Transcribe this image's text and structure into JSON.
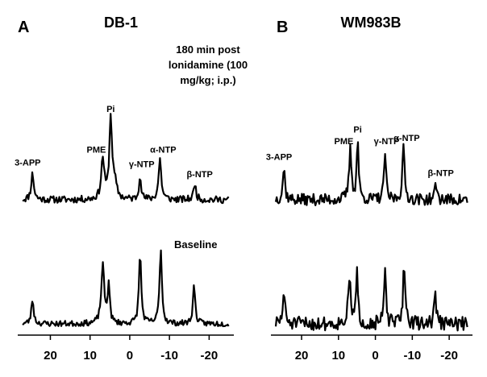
{
  "chart_data": {
    "type": "line",
    "xlabel": "",
    "ylabel": "",
    "x_unit": "ppm",
    "xlim": [
      27,
      -25
    ],
    "x_ticks": [
      20,
      10,
      0,
      -10,
      -20
    ],
    "panels": [
      {
        "letter": "A",
        "title": "DB-1",
        "condition_note": "180 min post lonidamine (100 mg/kg; i.p.)",
        "condition_lines": [
          "180 min post",
          "lonidamine (100",
          "mg/kg; i.p.)"
        ],
        "baseline_label": "Baseline",
        "series": [
          {
            "name": "180 min post lonidamine",
            "noise": 0.06,
            "seed": 11,
            "peaks": [
              {
                "label": "3-APP",
                "ppm": 24.5,
                "height": 0.45,
                "width": 0.4
              },
              {
                "label": "PME",
                "ppm": 6.8,
                "height": 0.7,
                "width": 0.45
              },
              {
                "label": "Pi",
                "ppm": 4.8,
                "height": 1.4,
                "width": 0.4
              },
              {
                "label": "",
                "ppm": 3.8,
                "height": 0.25,
                "width": 0.6
              },
              {
                "label": "γ-NTP",
                "ppm": -2.6,
                "height": 0.45,
                "width": 0.3
              },
              {
                "label": "α-NTP",
                "ppm": -7.6,
                "height": 0.7,
                "width": 0.4
              },
              {
                "label": "β-NTP",
                "ppm": -16.4,
                "height": 0.28,
                "width": 0.35
              }
            ]
          },
          {
            "name": "Baseline",
            "noise": 0.05,
            "seed": 23,
            "peaks": [
              {
                "ppm": 24.5,
                "height": 0.42,
                "width": 0.35
              },
              {
                "ppm": 6.8,
                "height": 1.0,
                "width": 0.45
              },
              {
                "ppm": 5.3,
                "height": 0.7,
                "width": 0.3
              },
              {
                "ppm": -2.6,
                "height": 1.2,
                "width": 0.35
              },
              {
                "ppm": -7.8,
                "height": 1.3,
                "width": 0.35
              },
              {
                "ppm": -16.2,
                "height": 0.65,
                "width": 0.35
              }
            ]
          }
        ]
      },
      {
        "letter": "B",
        "title": "WM983B",
        "baseline_label": "",
        "series": [
          {
            "name": "180 min post lonidamine",
            "noise": 0.1,
            "seed": 37,
            "peaks": [
              {
                "label": "3-APP",
                "ppm": 24.8,
                "height": 0.55,
                "width": 0.35
              },
              {
                "label": "PME",
                "ppm": 6.8,
                "height": 0.85,
                "width": 0.4
              },
              {
                "label": "Pi",
                "ppm": 4.8,
                "height": 1.05,
                "width": 0.3
              },
              {
                "label": "γ-NTP",
                "ppm": -2.6,
                "height": 0.85,
                "width": 0.3
              },
              {
                "label": "α-NTP",
                "ppm": -7.6,
                "height": 0.9,
                "width": 0.35
              },
              {
                "label": "β-NTP",
                "ppm": -16.4,
                "height": 0.3,
                "width": 0.3
              }
            ]
          },
          {
            "name": "Baseline",
            "noise": 0.12,
            "seed": 51,
            "peaks": [
              {
                "ppm": 24.8,
                "height": 0.55,
                "width": 0.35
              },
              {
                "ppm": 7.0,
                "height": 0.7,
                "width": 0.45
              },
              {
                "ppm": 5.0,
                "height": 0.85,
                "width": 0.3
              },
              {
                "ppm": -2.6,
                "height": 0.95,
                "width": 0.3
              },
              {
                "ppm": -7.8,
                "height": 1.05,
                "width": 0.35
              },
              {
                "ppm": -16.2,
                "height": 0.6,
                "width": 0.3
              }
            ]
          }
        ]
      }
    ]
  }
}
